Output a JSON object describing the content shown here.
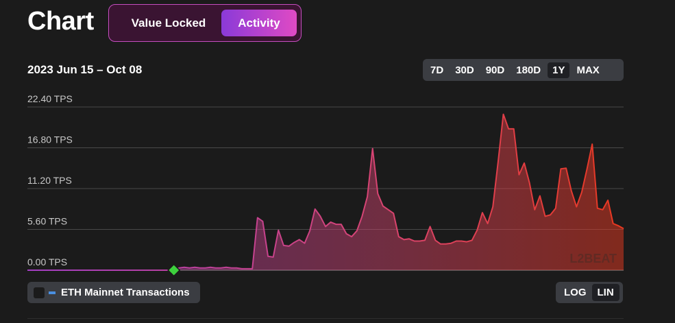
{
  "header": {
    "title": "Chart"
  },
  "view_toggle": {
    "options": [
      "Value Locked",
      "Activity"
    ],
    "active": "Activity"
  },
  "date_range": "2023 Jun 15 – Oct 08",
  "range_buttons": {
    "options": [
      "7D",
      "30D",
      "90D",
      "180D",
      "1Y",
      "MAX"
    ],
    "active": "1Y"
  },
  "series_toggle": {
    "label": "ETH Mainnet Transactions",
    "checked": false,
    "color": "#4a8fe0"
  },
  "scale_toggle": {
    "options": [
      "LOG",
      "LIN"
    ],
    "active": "LIN"
  },
  "watermark": "L2BEAT",
  "colors": {
    "gradient_start": "#a43fc4",
    "gradient_mid": "#d84470",
    "gradient_end": "#e8381f",
    "marker": "#3dd13d"
  },
  "chart_data": {
    "type": "area",
    "unit": "TPS",
    "y_ticks": [
      "22.40 TPS",
      "16.80 TPS",
      "11.20 TPS",
      "5.60 TPS",
      "0.00 TPS"
    ],
    "ylim": [
      0,
      22.4
    ],
    "grid": true,
    "x_start": "2023-06-15",
    "x_end": "2023-10-08",
    "values": [
      0.0,
      0.0,
      0.0,
      0.0,
      0.0,
      0.0,
      0.0,
      0.0,
      0.0,
      0.0,
      0.0,
      0.0,
      0.0,
      0.0,
      0.0,
      0.0,
      0.0,
      0.0,
      0.0,
      0.0,
      0.0,
      0.0,
      0.0,
      0.0,
      0.0,
      0.0,
      0.0,
      0.0,
      0.0,
      0.3,
      0.4,
      0.3,
      0.4,
      0.3,
      0.3,
      0.4,
      0.3,
      0.3,
      0.4,
      0.3,
      0.3,
      0.2,
      0.2,
      0.2,
      7.2,
      6.7,
      1.9,
      1.8,
      5.5,
      3.4,
      3.3,
      3.8,
      4.2,
      3.7,
      5.4,
      8.4,
      7.4,
      6.0,
      6.6,
      6.3,
      6.3,
      5.0,
      4.6,
      5.4,
      7.4,
      10.1,
      16.7,
      10.5,
      8.8,
      8.3,
      7.8,
      4.6,
      4.2,
      4.3,
      4.0,
      4.0,
      4.1,
      6.0,
      4.1,
      3.6,
      3.6,
      3.7,
      4.0,
      4.0,
      3.9,
      4.1,
      5.5,
      7.9,
      6.4,
      8.7,
      14.8,
      21.4,
      19.4,
      19.4,
      13.1,
      14.7,
      12.0,
      8.3,
      10.2,
      7.4,
      7.6,
      8.5,
      13.9,
      14.0,
      10.9,
      8.7,
      10.7,
      13.9,
      17.3,
      8.5,
      8.3,
      9.6,
      6.4,
      6.1,
      5.7
    ]
  }
}
